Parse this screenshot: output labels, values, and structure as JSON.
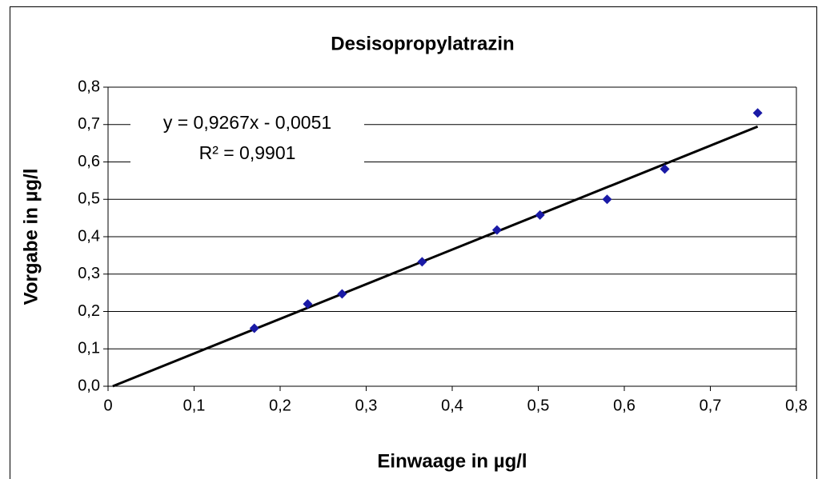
{
  "chart_data": {
    "type": "scatter",
    "title": "Desisopropylatrazin",
    "x_label": "Einwaage in µg/l",
    "y_label": "Vorgabe in µg/l",
    "series": [
      {
        "name": "Desisopropylatrazin",
        "color": "#1a1aa6",
        "x": [
          0.17,
          0.232,
          0.272,
          0.365,
          0.452,
          0.502,
          0.58,
          0.647,
          0.755
        ],
        "values": [
          0.155,
          0.22,
          0.247,
          0.333,
          0.418,
          0.458,
          0.5,
          0.581,
          0.731
        ]
      }
    ],
    "trendline": {
      "slope": 0.9267,
      "intercept": -0.0051,
      "color": "#000000",
      "equation_label": "y = 0,9267x - 0,0051",
      "r_squared_label": "R² = 0,9901"
    },
    "xlim": [
      0,
      0.8
    ],
    "xticks": [
      0,
      {
        "value": 0.1,
        "label": "0,1"
      },
      {
        "value": 0.2,
        "label": "0,2"
      },
      {
        "value": 0.3,
        "label": "0,3"
      },
      {
        "value": 0.4,
        "label": "0,4"
      },
      {
        "value": 0.5,
        "label": "0,5"
      },
      {
        "value": 0.6,
        "label": "0,6"
      },
      {
        "value": 0.7,
        "label": "0,7"
      },
      {
        "value": 0.8,
        "label": "0,8"
      }
    ],
    "ylim": [
      0,
      0.8
    ],
    "yticks": [
      {
        "value": 0,
        "label": "0,0"
      },
      {
        "value": 0.1,
        "label": "0,1"
      },
      {
        "value": 0.2,
        "label": "0,2"
      },
      {
        "value": 0.3,
        "label": "0,3"
      },
      {
        "value": 0.4,
        "label": "0,4"
      },
      {
        "value": 0.5,
        "label": "0,5"
      },
      {
        "value": 0.6,
        "label": "0,6"
      },
      {
        "value": 0.7,
        "label": "0,7"
      },
      {
        "value": 0.8,
        "label": "0,8"
      }
    ],
    "grid": true
  }
}
